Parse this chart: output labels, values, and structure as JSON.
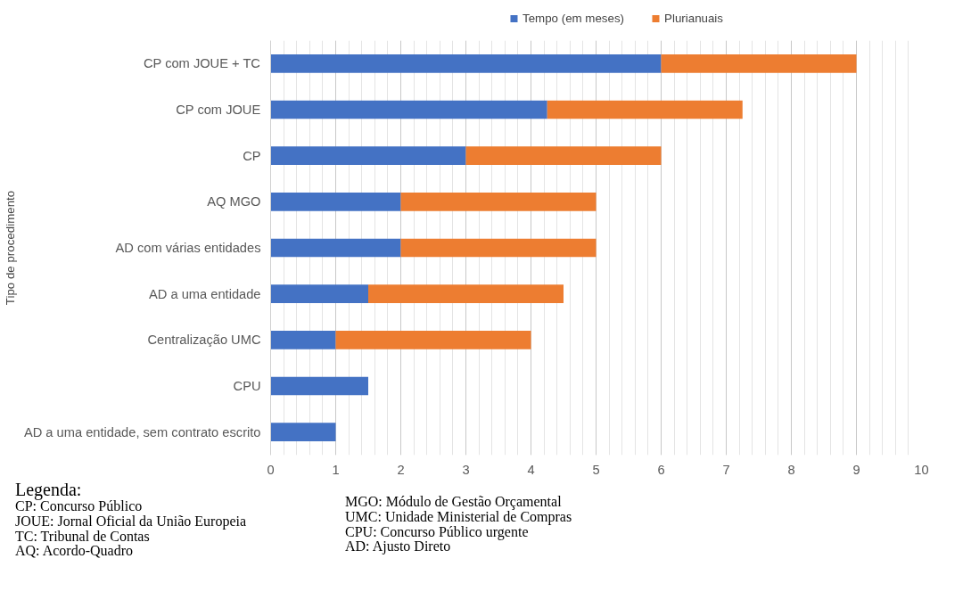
{
  "chart_data": {
    "type": "bar",
    "orientation": "horizontal",
    "stacked": true,
    "ylabel": "Tipo de procedimento",
    "categories": [
      "CP com JOUE + TC",
      "CP com JOUE",
      "CP",
      "AQ MGO",
      "AD com várias entidades",
      "AD a uma entidade",
      "Centralização UMC",
      "CPU",
      "AD a uma entidade, sem contrato escrito"
    ],
    "series": [
      {
        "name": "Tempo (em meses)",
        "color": "#4472c4",
        "values": [
          6,
          4.25,
          3,
          2,
          2,
          1.5,
          1,
          1.5,
          1
        ]
      },
      {
        "name": "Plurianuais",
        "color": "#ed7d31",
        "values": [
          3,
          3,
          3,
          3,
          3,
          3,
          3,
          null,
          null
        ]
      }
    ],
    "xlim": [
      0,
      10
    ],
    "xticks": [
      0,
      1,
      2,
      3,
      4,
      5,
      6,
      7,
      8,
      9,
      10
    ],
    "grid": "x",
    "legend": "top",
    "annotations": [
      "Legenda:",
      "CP: Concurso Público",
      "JOUE: Jornal Oficial da União Europeia",
      "TC: Tribunal de Contas",
      "AQ: Acordo-Quadro",
      "MGO: Módulo de Gestão Orçamental",
      "UMC: Unidade Ministerial de Compras",
      "CPU: Concurso Público urgente",
      "AD: Ajusto Direto"
    ]
  }
}
